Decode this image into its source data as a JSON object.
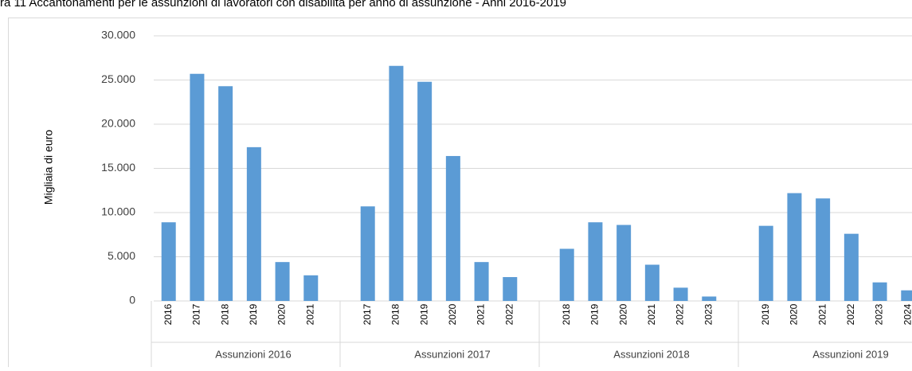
{
  "chart_data": {
    "type": "grouped-bar",
    "title": "ra 11      Accantonamenti per le assunzioni di lavoratori con disabilità per anno di assunzione - Anni 2016-2019",
    "ylabel": "Migliaia di euro",
    "color": "#5b9bd5",
    "grid": true,
    "ylim": [
      0,
      30000
    ],
    "yticks": [
      0,
      {
        "value": 5000,
        "label": "5.000"
      },
      {
        "value": 10000,
        "label": "10.000"
      },
      {
        "value": 15000,
        "label": "15.000"
      },
      {
        "value": 20000,
        "label": "20.000"
      },
      {
        "value": 25000,
        "label": "25.000"
      },
      {
        "value": 30000,
        "label": "30.000"
      }
    ],
    "groups": [
      {
        "name": "Assunzioni 2016",
        "categories": [
          "2016",
          "2017",
          "2018",
          "2019",
          "2020",
          "2021"
        ],
        "values": [
          8900,
          25700,
          24300,
          17400,
          4400,
          2900
        ]
      },
      {
        "name": "Assunzioni 2017",
        "categories": [
          "2017",
          "2018",
          "2019",
          "2020",
          "2021",
          "2022"
        ],
        "values": [
          10700,
          26600,
          24800,
          16400,
          4400,
          2700
        ]
      },
      {
        "name": "Assunzioni 2018",
        "categories": [
          "2018",
          "2019",
          "2020",
          "2021",
          "2022",
          "2023"
        ],
        "values": [
          5900,
          8900,
          8600,
          4100,
          1500,
          500
        ]
      },
      {
        "name": "Assunzioni 2019",
        "categories": [
          "2019",
          "2020",
          "2021",
          "2022",
          "2023",
          "2024"
        ],
        "values": [
          8500,
          12200,
          11600,
          7600,
          2100,
          1200
        ]
      }
    ]
  }
}
